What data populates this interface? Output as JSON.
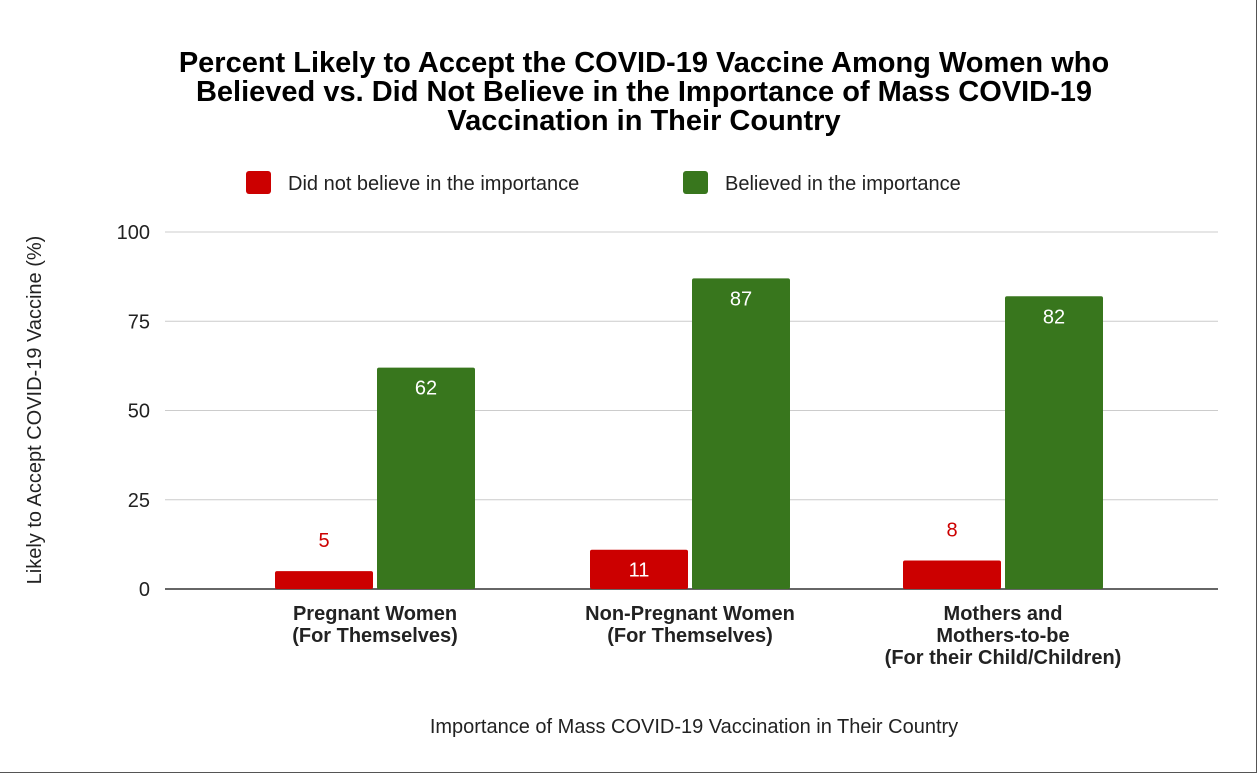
{
  "chart_data": {
    "type": "bar",
    "title": "Percent Likely to Accept the COVID-19 Vaccine Among Women who Believed vs. Did Not Believe in the Importance of Mass COVID-19 Vaccination in Their Country",
    "title_lines": [
      "Percent Likely to Accept the COVID-19 Vaccine Among Women who",
      "Believed vs. Did Not Believe in the Importance of Mass COVID-19",
      "Vaccination in Their Country"
    ],
    "xlabel": "Importance of Mass COVID-19 Vaccination in Their Country",
    "ylabel": "Likely to Accept COVID-19 Vaccine (%)",
    "ylim": [
      0,
      100
    ],
    "yticks": [
      0,
      25,
      50,
      75,
      100
    ],
    "grid": true,
    "legend_position": "top",
    "categories": [
      [
        "Pregnant Women",
        "(For Themselves)"
      ],
      [
        "Non-Pregnant Women",
        "(For Themselves)"
      ],
      [
        "Mothers and",
        "Mothers-to-be",
        "(For their Child/Children)"
      ]
    ],
    "series": [
      {
        "name": "Did not believe in the importance",
        "color": "#cc0000",
        "values": [
          5,
          11,
          8
        ],
        "data_labels": [
          "5",
          "11",
          "8"
        ]
      },
      {
        "name": "Believed in the importance",
        "color": "#38761d",
        "values": [
          62,
          87,
          82
        ],
        "data_labels": [
          "62",
          "87",
          "82"
        ]
      }
    ]
  }
}
